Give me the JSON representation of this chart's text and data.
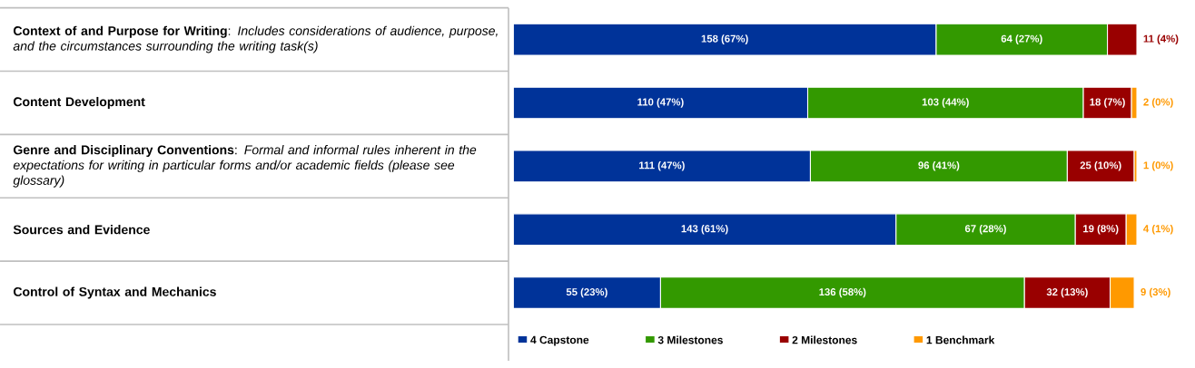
{
  "chart_data": {
    "type": "bar",
    "orientation": "horizontal",
    "stacked": true,
    "categories": [
      "**Context of and Purpose for Writing**: *Includes considerations of audience, purpose, and the circumstances surrounding the writing task(s)*",
      "**Content Development**",
      "**Genre and Disciplinary Conventions**:  *Formal and informal rules inherent in the expectations for writing in particular forms and/or academic fields (please see glossary)*",
      "**Sources and Evidence**",
      "**Control of Syntax and Mechanics**"
    ],
    "series": [
      {
        "name": "4 Capstone",
        "color": "#003399",
        "values": [
          158,
          110,
          111,
          143,
          55
        ],
        "value_labels": [
          "158 (67%)",
          "110 (47%)",
          "111 (47%)",
          "143 (61%)",
          "55 (23%)"
        ]
      },
      {
        "name": "3 Milestones",
        "color": "#339900",
        "values": [
          64,
          103,
          96,
          67,
          136
        ],
        "value_labels": [
          "64 (27%)",
          "103 (44%)",
          "96 (41%)",
          "67 (28%)",
          "136 (58%)"
        ]
      },
      {
        "name": "2 Milestones",
        "color": "#990000",
        "values": [
          11,
          18,
          25,
          19,
          32
        ],
        "value_labels": [
          "11 (4%)",
          "18 (7%)",
          "25 (10%)",
          "19 (8%)",
          "32 (13%)"
        ]
      },
      {
        "name": "1 Benchmark",
        "color": "#ff9900",
        "values": [
          0,
          2,
          1,
          4,
          9
        ],
        "value_labels": [
          null,
          "2 (0%)",
          "1 (0%)",
          "4 (1%)",
          "9 (3%)"
        ]
      }
    ],
    "legend": "bottom",
    "tick_labels": "y"
  }
}
